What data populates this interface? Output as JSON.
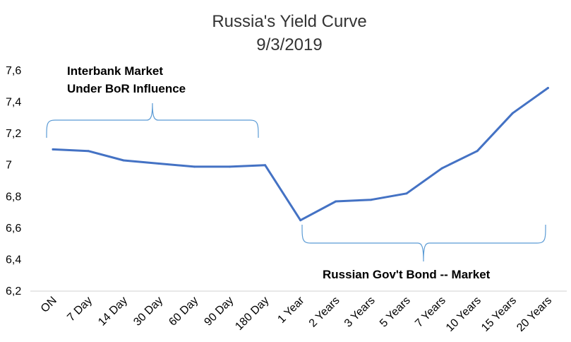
{
  "chart_data": {
    "type": "line",
    "title": "Russia's Yield Curve",
    "subtitle": "9/3/2019",
    "xlabel": "",
    "ylabel": "",
    "categories": [
      "ON",
      "7 Day",
      "14 Day",
      "30 Day",
      "60 Day",
      "90 Day",
      "180 Day",
      "1 Year",
      "2 Years",
      "3 Years",
      "5 Years",
      "7 Years",
      "10 Years",
      "15 Years",
      "20 Years"
    ],
    "series": [
      {
        "values": [
          7.1,
          7.09,
          7.03,
          7.01,
          6.99,
          6.99,
          7.0,
          6.65,
          6.77,
          6.78,
          6.82,
          6.98,
          7.09,
          7.33,
          7.49
        ],
        "color": "#4472C4"
      }
    ],
    "ylim": [
      6.2,
      7.6
    ],
    "y_ticks": [
      "6,2",
      "6,4",
      "6,6",
      "6,8",
      "7",
      "7,2",
      "7,4",
      "7,6"
    ],
    "y_tick_values": [
      6.2,
      6.4,
      6.6,
      6.8,
      7.0,
      7.2,
      7.4,
      7.6
    ],
    "grid": false,
    "legend": "none",
    "annotations": [
      {
        "lines": [
          "Interbank Market",
          "Under BoR Influence"
        ],
        "from_category": "ON",
        "to_category": "180 Day",
        "bracket": "top"
      },
      {
        "lines": [
          "Russian Gov't Bond -- Market"
        ],
        "from_category": "1 Year",
        "to_category": "20 Years",
        "bracket": "bottom"
      }
    ],
    "colors": {
      "line": "#4472C4",
      "bracket": "#5B9BD5",
      "axis": "#D9D9D9",
      "title": "#333333"
    }
  }
}
